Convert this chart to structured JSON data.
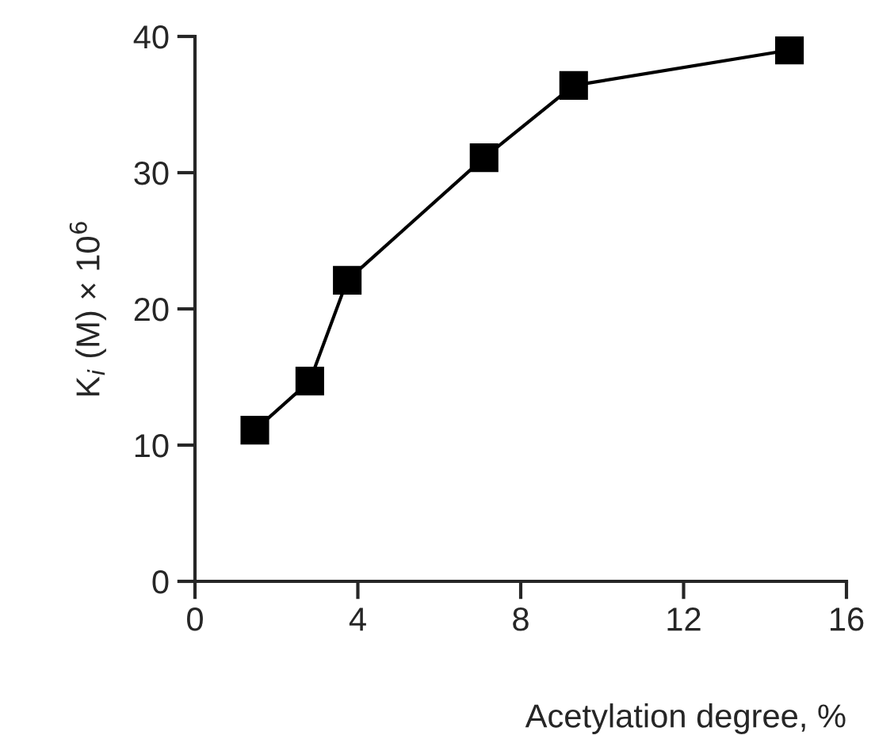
{
  "chart_data": {
    "type": "line",
    "xlabel": "Acetylation degree, %",
    "ylabel": "K$_{i}$ (M) × 10$^{6}$",
    "x": [
      1.47,
      2.82,
      3.74,
      7.1,
      9.3,
      14.6
    ],
    "series": [
      {
        "color": "#000000",
        "values": [
          11.1,
          14.7,
          22.1,
          31.1,
          36.4,
          39.0
        ]
      }
    ],
    "xlim": [
      0,
      16
    ],
    "xticks": [
      0,
      4,
      8,
      12,
      16
    ],
    "ylim": [
      0,
      40
    ],
    "yticks": [
      0,
      10,
      20,
      30,
      40
    ],
    "marker": "square",
    "line_style": "solid",
    "grid": false,
    "legend": false
  }
}
